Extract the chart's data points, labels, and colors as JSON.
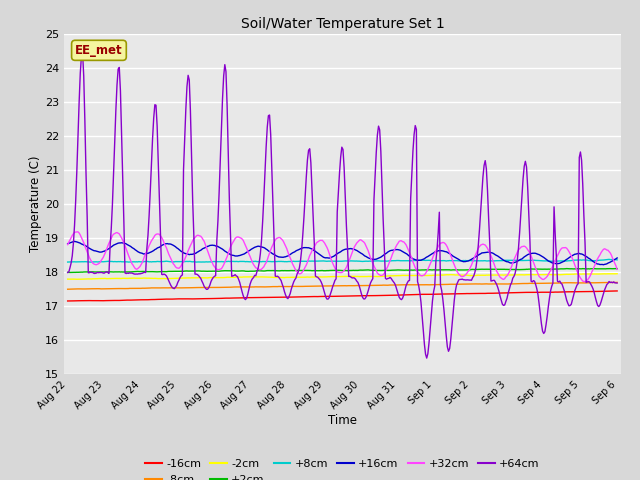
{
  "title": "Soil/Water Temperature Set 1",
  "xlabel": "Time",
  "ylabel": "Temperature (C)",
  "ylim": [
    15.0,
    25.0
  ],
  "yticks": [
    15.0,
    16.0,
    17.0,
    18.0,
    19.0,
    20.0,
    21.0,
    22.0,
    23.0,
    24.0,
    25.0
  ],
  "bg_color": "#d8d8d8",
  "plot_bg_color": "#e8e8e8",
  "watermark": "EE_met",
  "series": {
    "-16cm": {
      "color": "#ff0000"
    },
    "-8cm": {
      "color": "#ff8800"
    },
    "-2cm": {
      "color": "#ffff00"
    },
    "+2cm": {
      "color": "#00bb00"
    },
    "+8cm": {
      "color": "#00cccc"
    },
    "+16cm": {
      "color": "#0000cc"
    },
    "+32cm": {
      "color": "#ff44ff"
    },
    "+64cm": {
      "color": "#8800cc"
    }
  },
  "tick_labels": [
    "Aug 22",
    "Aug 23",
    "Aug 24",
    "Aug 25",
    "Aug 26",
    "Aug 27",
    "Aug 28",
    "Aug 29",
    "Aug 30",
    "Aug 31",
    "Sep 1",
    "Sep 2",
    "Sep 3",
    "Sep 4",
    "Sep 5",
    "Sep 6"
  ],
  "num_points": 480
}
